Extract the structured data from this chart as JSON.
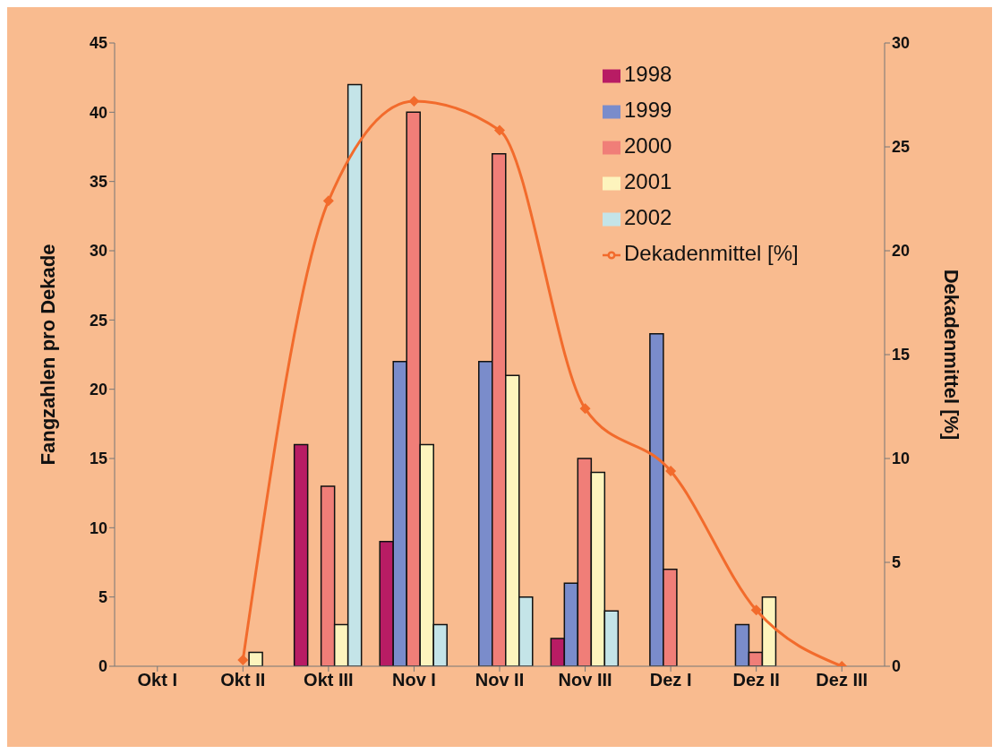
{
  "chart_data": {
    "type": "bar",
    "ylabel": "Fangzahlen pro Dekade",
    "y2label": "Dekadenmittel [%]",
    "categories": [
      "Okt I",
      "Okt II",
      "Okt III",
      "Nov I",
      "Nov II",
      "Nov III",
      "Dez I",
      "Dez II",
      "Dez III"
    ],
    "series": [
      {
        "name": "1998",
        "color": "#b81c64",
        "values": [
          null,
          null,
          16,
          9,
          null,
          2,
          null,
          null,
          null
        ]
      },
      {
        "name": "1999",
        "color": "#7a8ccb",
        "values": [
          null,
          null,
          null,
          22,
          22,
          6,
          24,
          3,
          null
        ]
      },
      {
        "name": "2000",
        "color": "#f07e78",
        "values": [
          null,
          null,
          13,
          40,
          37,
          15,
          7,
          1,
          null
        ]
      },
      {
        "name": "2001",
        "color": "#fdf4bd",
        "values": [
          null,
          1,
          3,
          16,
          21,
          14,
          null,
          5,
          null
        ]
      },
      {
        "name": "2002",
        "color": "#c4e4e8",
        "values": [
          null,
          null,
          42,
          3,
          5,
          4,
          null,
          null,
          null
        ]
      },
      {
        "name": "Dekadenmittel [%]",
        "type": "line",
        "axis": "y2",
        "color": "#f26b2c",
        "marker": "diamond",
        "values": [
          null,
          0.3,
          22.4,
          27.2,
          25.8,
          12.4,
          9.4,
          2.7,
          0
        ]
      }
    ],
    "ylim": [
      0,
      45
    ],
    "yticks": [
      0,
      5,
      10,
      15,
      20,
      25,
      30,
      35,
      40,
      45
    ],
    "y2lim": [
      0,
      30
    ],
    "y2ticks": [
      0,
      5,
      10,
      15,
      20,
      25,
      30
    ],
    "legend": "top right",
    "grid": false
  }
}
